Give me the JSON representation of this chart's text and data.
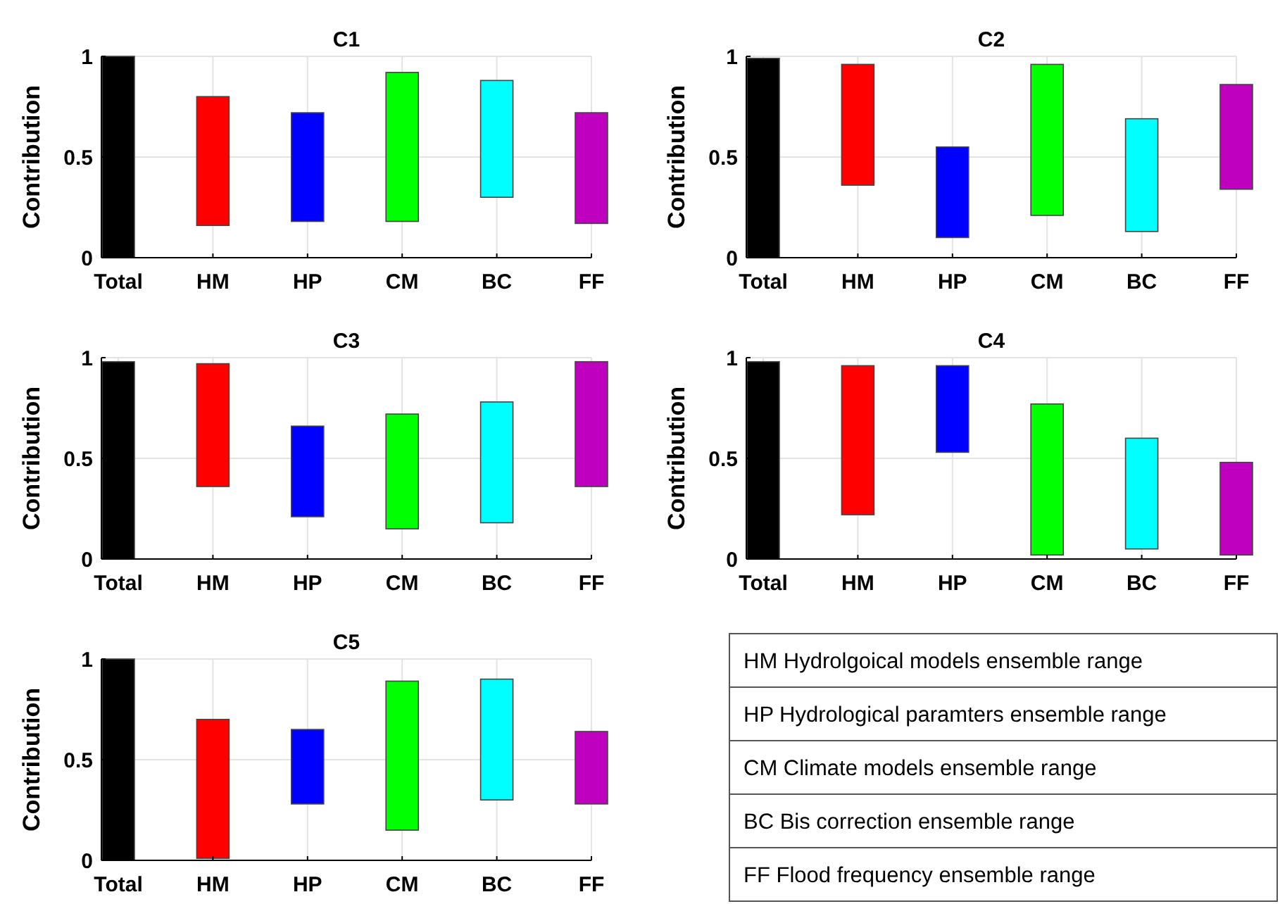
{
  "chart_data": [
    {
      "type": "bar",
      "title": "C1",
      "ylabel": "Contribution",
      "categories": [
        "Total",
        "HM",
        "HP",
        "CM",
        "BC",
        "FF"
      ],
      "values": [
        1,
        0.64,
        0.54,
        0.74,
        0.58,
        0.55
      ],
      "base": [
        0,
        0.16,
        0.18,
        0.18,
        0.3,
        0.17
      ],
      "colors": [
        "#000000",
        "#ff0000",
        "#0000ff",
        "#00ff00",
        "#00ffff",
        "#bf00bf"
      ],
      "ylim": [
        0,
        1
      ],
      "yticks": [
        0,
        0.5,
        1
      ],
      "grid": true
    },
    {
      "type": "bar",
      "title": "C2",
      "ylabel": "Contribution",
      "categories": [
        "Total",
        "HM",
        "HP",
        "CM",
        "BC",
        "FF"
      ],
      "values": [
        0.99,
        0.6,
        0.45,
        0.75,
        0.56,
        0.52
      ],
      "base": [
        0,
        0.36,
        0.1,
        0.21,
        0.13,
        0.34
      ],
      "colors": [
        "#000000",
        "#ff0000",
        "#0000ff",
        "#00ff00",
        "#00ffff",
        "#bf00bf"
      ],
      "ylim": [
        0,
        1
      ],
      "yticks": [
        0,
        0.5,
        1
      ],
      "grid": true
    },
    {
      "type": "bar",
      "title": "C3",
      "ylabel": "Contribution",
      "categories": [
        "Total",
        "HM",
        "HP",
        "CM",
        "BC",
        "FF"
      ],
      "values": [
        0.98,
        0.61,
        0.45,
        0.57,
        0.6,
        0.62
      ],
      "base": [
        0,
        0.36,
        0.21,
        0.15,
        0.18,
        0.36
      ],
      "colors": [
        "#000000",
        "#ff0000",
        "#0000ff",
        "#00ff00",
        "#00ffff",
        "#bf00bf"
      ],
      "ylim": [
        0,
        1
      ],
      "yticks": [
        0,
        0.5,
        1
      ],
      "grid": true
    },
    {
      "type": "bar",
      "title": "C4",
      "ylabel": "Contribution",
      "categories": [
        "Total",
        "HM",
        "HP",
        "CM",
        "BC",
        "FF"
      ],
      "values": [
        0.98,
        0.74,
        0.43,
        0.75,
        0.55,
        0.46
      ],
      "base": [
        0,
        0.22,
        0.53,
        0.02,
        0.05,
        0.02
      ],
      "colors": [
        "#000000",
        "#ff0000",
        "#0000ff",
        "#00ff00",
        "#00ffff",
        "#bf00bf"
      ],
      "ylim": [
        0,
        1
      ],
      "yticks": [
        0,
        0.5,
        1
      ],
      "grid": true
    },
    {
      "type": "bar",
      "title": "C5",
      "ylabel": "Contribution",
      "categories": [
        "Total",
        "HM",
        "HP",
        "CM",
        "BC",
        "FF"
      ],
      "values": [
        1,
        0.69,
        0.37,
        0.74,
        0.6,
        0.36
      ],
      "base": [
        0,
        0.01,
        0.28,
        0.15,
        0.3,
        0.28
      ],
      "colors": [
        "#000000",
        "#ff0000",
        "#0000ff",
        "#00ff00",
        "#00ffff",
        "#bf00bf"
      ],
      "ylim": [
        0,
        1
      ],
      "yticks": [
        0,
        0.5,
        1
      ],
      "grid": true
    },
    {
      "type": "other",
      "annotations": [
        "HM Hydrolgoical models ensemble range",
        "HP Hydrological paramters ensemble range",
        "CM Climate models ensemble range",
        "BC Bis correction ensemble range",
        "FF Flood frequency ensemble range"
      ]
    }
  ]
}
